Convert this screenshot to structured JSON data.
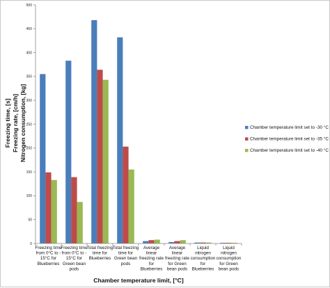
{
  "chart_data": {
    "type": "bar",
    "xlabel": "Chamber temperature limit, [°C]",
    "ylabel_lines": [
      "Freezing time, [s]",
      "Freezing rate, [cm/h]",
      "Nitrogen consumption, [kg]"
    ],
    "ylim": [
      0,
      500
    ],
    "yticks": [
      0,
      50,
      100,
      150,
      200,
      250,
      300,
      350,
      400,
      450,
      500
    ],
    "grid": false,
    "legend_position": "right",
    "categories": [
      [
        "Freezing time",
        "from 0°C to -",
        "15°C for",
        "Blueberries"
      ],
      [
        "Freezing time",
        "from 0°C to -",
        "15°C for",
        "Green bean",
        "pods"
      ],
      [
        "Total freezing",
        "time for",
        "Blueberries"
      ],
      [
        "Total freezing",
        "time for",
        "Green bean",
        "pods"
      ],
      [
        "Average",
        "linear",
        "freezing rate",
        "for",
        "Blueberries"
      ],
      [
        "Average",
        "linear",
        "freezing rate",
        "for Green",
        "bean pods"
      ],
      [
        "Liquid",
        "nitrogen",
        "consumption",
        "for",
        "Blueberries"
      ],
      [
        "Liquid",
        "nitrogen",
        "consumption",
        "for Green",
        "bean pods"
      ]
    ],
    "series": [
      {
        "name": "Chamber temperature limit set to -30 °C",
        "color": "#4a7ebb",
        "values": [
          355,
          383,
          468,
          432,
          5,
          3,
          2,
          1.5
        ]
      },
      {
        "name": "Chamber temperature limit set to -35 °C",
        "color": "#be4b48",
        "values": [
          149,
          139,
          364,
          203,
          7,
          5,
          2,
          1.5
        ]
      },
      {
        "name": "Chamber temperature limit set to -40 °C",
        "color": "#98b954",
        "values": [
          133,
          87,
          343,
          155,
          8,
          7,
          2,
          1.5
        ]
      }
    ]
  }
}
